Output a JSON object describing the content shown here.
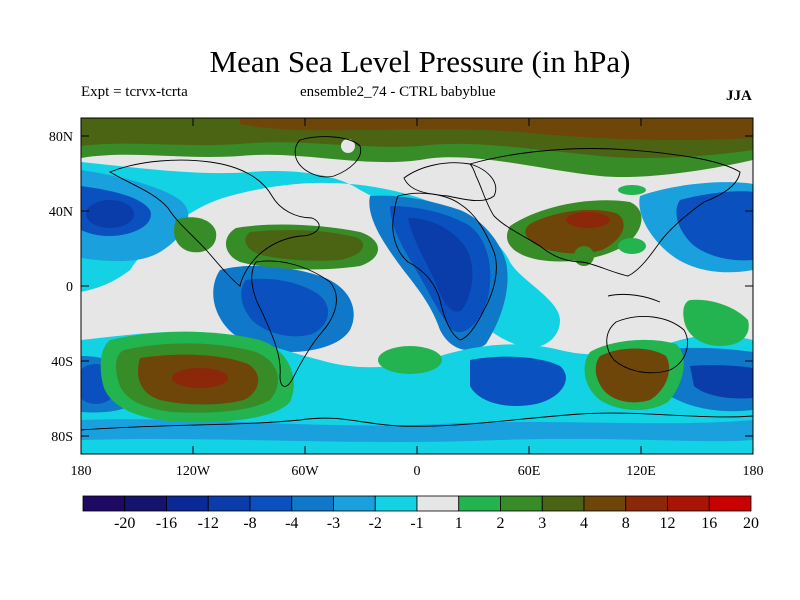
{
  "title": "Mean Sea Level Pressure (in hPa)",
  "subtitle_left": "Expt = tcrvx-tcrta",
  "subtitle_center": "ensemble2_74 - CTRL babyblue",
  "season": "JJA",
  "y_ticks": [
    "80N",
    "40N",
    "0",
    "40S",
    "80S"
  ],
  "x_ticks": [
    "180",
    "120W",
    "60W",
    "0",
    "60E",
    "120E",
    "180"
  ],
  "colorbar": {
    "labels": [
      "-20",
      "-16",
      "-12",
      "-8",
      "-4",
      "-3",
      "-2",
      "-1",
      "1",
      "2",
      "3",
      "4",
      "8",
      "12",
      "16",
      "20"
    ],
    "colors": [
      "#1e0a64",
      "#14146e",
      "#0a2896",
      "#0a3caa",
      "#0a50be",
      "#0f78c8",
      "#1aa0dc",
      "#12d2e4",
      "#e6e6e6",
      "#23b450",
      "#378c28",
      "#4b6414",
      "#6e460a",
      "#8c280a",
      "#aa1405",
      "#c80000"
    ]
  },
  "colors": {
    "neutral": "#e6e6e6",
    "coast": "#000000"
  }
}
